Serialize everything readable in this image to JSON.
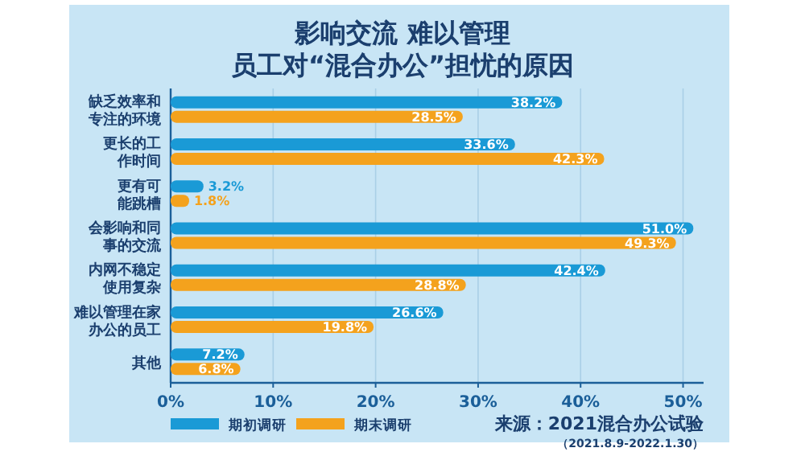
{
  "chart_data": {
    "type": "bar",
    "orientation": "horizontal",
    "title": "影响交流 难以管理",
    "subtitle": "员工对“混合办公”担忧的原因",
    "categories": [
      "缺乏效率和专注的环境",
      "更长的工作时间",
      "更有可能跳槽",
      "会影响和同事的交流",
      "内网不稳定使用复杂",
      "难以管理在家办公的员工",
      "其他"
    ],
    "series": [
      {
        "name": "期初调研",
        "color": "#1a9ad6",
        "values": [
          38.2,
          33.6,
          3.2,
          51.0,
          42.4,
          26.6,
          7.2
        ],
        "value_labels": [
          "38.2%",
          "33.6%",
          "3.2%",
          "51.0%",
          "42.4%",
          "26.6%",
          "7.2%"
        ]
      },
      {
        "name": "期末调研",
        "color": "#f4a21d",
        "values": [
          28.5,
          42.3,
          1.8,
          49.3,
          28.8,
          19.8,
          6.8
        ],
        "value_labels": [
          "28.5%",
          "42.3%",
          "1.8%",
          "49.3%",
          "28.8%",
          "19.8%",
          "6.8%"
        ]
      }
    ],
    "xlim": [
      0,
      52
    ],
    "xticks": [
      {
        "value": 0,
        "label": "0%"
      },
      {
        "value": 10,
        "label": "10%"
      },
      {
        "value": 20,
        "label": "20%"
      },
      {
        "value": 30,
        "label": "30%"
      },
      {
        "value": 40,
        "label": "40%"
      },
      {
        "value": 50,
        "label": "50%"
      }
    ],
    "grid": "x",
    "legend": "bottom left",
    "annotations": [
      "来源：2021混合办公试验",
      "（2021.8.9-2022.1.30）"
    ]
  }
}
